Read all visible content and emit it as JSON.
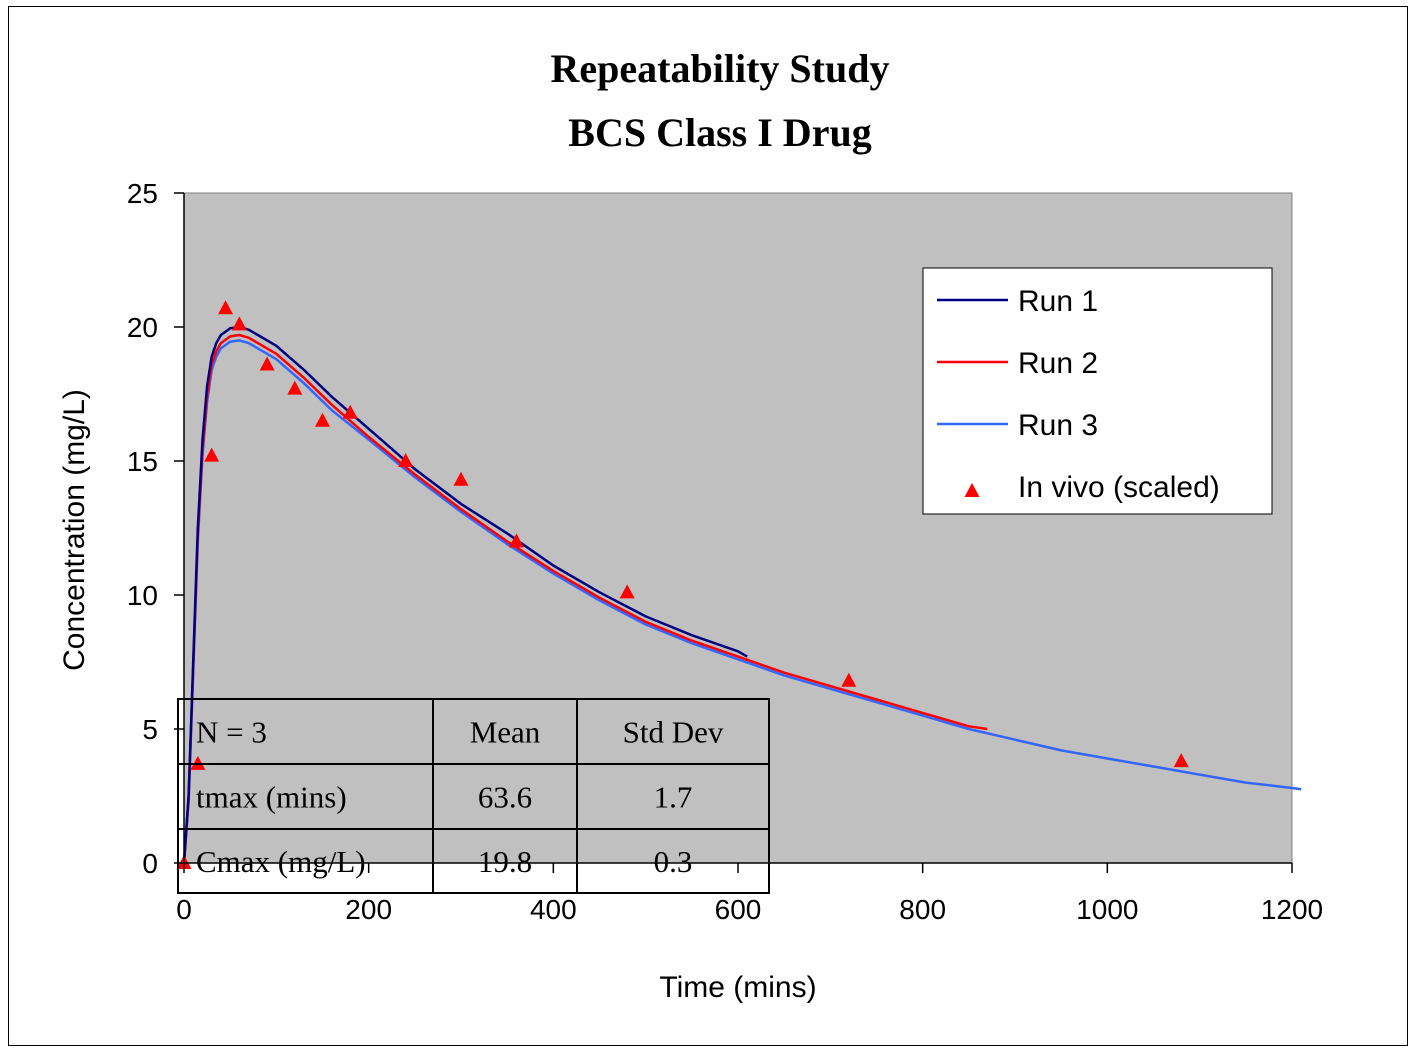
{
  "chart_data": {
    "type": "line",
    "title": "Repeatability Study",
    "subtitle": "BCS Class I Drug",
    "xlabel": "Time (mins)",
    "ylabel": "Concentration (mg/L)",
    "xlim": [
      0,
      1200
    ],
    "ylim": [
      0,
      25
    ],
    "xticks": [
      0,
      200,
      400,
      600,
      800,
      1000,
      1200
    ],
    "yticks": [
      0,
      5,
      10,
      15,
      20,
      25
    ],
    "plot_background": "#c0c0c0",
    "grid": false,
    "legend_position": "top-right",
    "series": [
      {
        "name": "Run 1",
        "kind": "line",
        "color": "#000080",
        "x": [
          0,
          5,
          10,
          15,
          20,
          25,
          30,
          35,
          40,
          50,
          60,
          70,
          80,
          100,
          130,
          160,
          200,
          250,
          300,
          350,
          400,
          450,
          500,
          550,
          600,
          610
        ],
        "y": [
          0,
          2.5,
          7.5,
          12.5,
          15.8,
          17.8,
          18.9,
          19.4,
          19.7,
          19.95,
          20.0,
          19.9,
          19.7,
          19.3,
          18.4,
          17.4,
          16.2,
          14.7,
          13.4,
          12.3,
          11.1,
          10.1,
          9.2,
          8.5,
          7.9,
          7.7
        ]
      },
      {
        "name": "Run 2",
        "kind": "line",
        "color": "#ff0000",
        "x": [
          0,
          5,
          10,
          15,
          20,
          25,
          30,
          35,
          40,
          50,
          60,
          70,
          80,
          100,
          130,
          160,
          200,
          250,
          300,
          350,
          400,
          450,
          500,
          550,
          600,
          650,
          700,
          750,
          800,
          850,
          870
        ],
        "y": [
          0,
          2.4,
          7.3,
          12.2,
          15.4,
          17.4,
          18.6,
          19.1,
          19.4,
          19.65,
          19.7,
          19.6,
          19.4,
          19.0,
          18.1,
          17.1,
          15.9,
          14.5,
          13.2,
          12.0,
          10.9,
          9.9,
          9.0,
          8.3,
          7.7,
          7.1,
          6.6,
          6.1,
          5.6,
          5.1,
          5.0
        ]
      },
      {
        "name": "Run 3",
        "kind": "line",
        "color": "#3366ff",
        "x": [
          0,
          5,
          10,
          15,
          20,
          25,
          30,
          35,
          40,
          50,
          60,
          70,
          80,
          100,
          130,
          160,
          200,
          250,
          300,
          350,
          400,
          450,
          500,
          550,
          600,
          650,
          700,
          750,
          800,
          850,
          900,
          950,
          1000,
          1050,
          1100,
          1150,
          1200,
          1210
        ],
        "y": [
          0,
          2.3,
          7.1,
          12.0,
          15.2,
          17.2,
          18.4,
          18.9,
          19.2,
          19.45,
          19.5,
          19.4,
          19.2,
          18.8,
          17.9,
          16.9,
          15.8,
          14.4,
          13.1,
          11.9,
          10.8,
          9.8,
          8.9,
          8.2,
          7.6,
          7.0,
          6.5,
          6.0,
          5.5,
          5.0,
          4.6,
          4.2,
          3.9,
          3.6,
          3.3,
          3.0,
          2.8,
          2.75
        ]
      },
      {
        "name": "In vivo (scaled)",
        "kind": "scatter",
        "color": "#ff0000",
        "marker": "triangle",
        "x": [
          0,
          15,
          30,
          45,
          60,
          90,
          120,
          150,
          180,
          240,
          300,
          360,
          480,
          720,
          1080
        ],
        "y": [
          0,
          3.7,
          15.2,
          20.7,
          20.1,
          18.6,
          17.7,
          16.5,
          16.8,
          15.0,
          14.3,
          12.0,
          10.1,
          6.8,
          3.8
        ]
      }
    ],
    "table": {
      "header": [
        "N = 3",
        "Mean",
        "Std Dev"
      ],
      "rows": [
        [
          "tmax (mins)",
          "63.6",
          "1.7"
        ],
        [
          "Cmax (mg/L)",
          "19.8",
          "0.3"
        ]
      ]
    }
  }
}
